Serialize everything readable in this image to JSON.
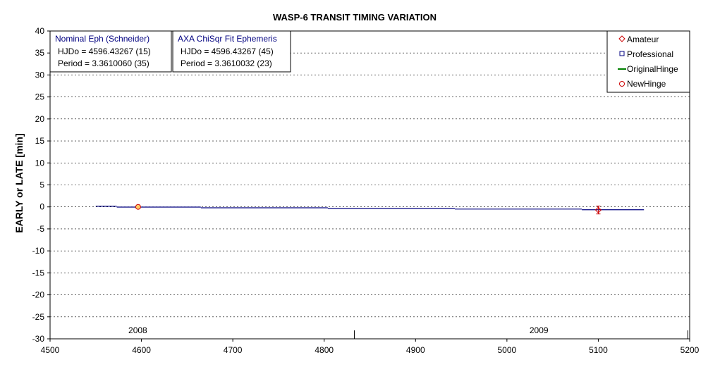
{
  "chart_data": {
    "type": "scatter",
    "title": "WASP-6 TRANSIT TIMING VARIATION",
    "xlabel": "",
    "ylabel": "EARLY or LATE [min]",
    "xlim": [
      4500,
      5200
    ],
    "ylim": [
      -30,
      40
    ],
    "x_ticks": [
      4500,
      4600,
      4700,
      4800,
      4900,
      5000,
      5100,
      5200
    ],
    "y_ticks": [
      40,
      35,
      30,
      25,
      20,
      15,
      10,
      5,
      0,
      -5,
      -10,
      -15,
      -20,
      -25,
      -30
    ],
    "grid": "horizontal dashed",
    "year_labels": [
      {
        "label": "2008",
        "x": 4596
      },
      {
        "label": "2009",
        "x": 5035
      }
    ],
    "year_boundaries": [
      4833,
      5198
    ],
    "legend": {
      "placement": "top-right",
      "entries": [
        {
          "name": "Amateur",
          "marker": "diamond",
          "color": "#cc0000"
        },
        {
          "name": "Professional",
          "marker": "square",
          "color": "#000080"
        },
        {
          "name": "OriginalHinge",
          "marker": "line",
          "color": "#008000"
        },
        {
          "name": "NewHinge",
          "marker": "circle",
          "color": "#cc0000"
        }
      ]
    },
    "info_boxes": [
      {
        "title": "Nominal Eph (Schneider)",
        "lines": [
          "HJDo = 4596.43267 (15)",
          "Period = 3.3610060 (35)"
        ]
      },
      {
        "title": "AXA ChiSqr Fit Ephemeris",
        "lines": [
          "HJDo = 4596.43267 (45)",
          "Period = 3.3610032 (23)"
        ]
      }
    ],
    "series": [
      {
        "name": "Amateur",
        "points": [
          {
            "x": 5100,
            "y": -0.7,
            "err": 0.9
          }
        ]
      },
      {
        "name": "NewHinge",
        "points": [
          {
            "x": 4596.4,
            "y": 0.0
          }
        ]
      },
      {
        "name": "Fit ephemeris steps",
        "color": "#000080",
        "steps": [
          {
            "x0": 4550,
            "x1": 4573,
            "y": 0.15
          },
          {
            "x0": 4573,
            "x1": 4665,
            "y": -0.05
          },
          {
            "x0": 4665,
            "x1": 4804,
            "y": -0.2
          },
          {
            "x0": 4804,
            "x1": 4943,
            "y": -0.35
          },
          {
            "x0": 4943,
            "x1": 5082,
            "y": -0.5
          },
          {
            "x0": 5082,
            "x1": 5150,
            "y": -0.65
          }
        ]
      }
    ]
  }
}
